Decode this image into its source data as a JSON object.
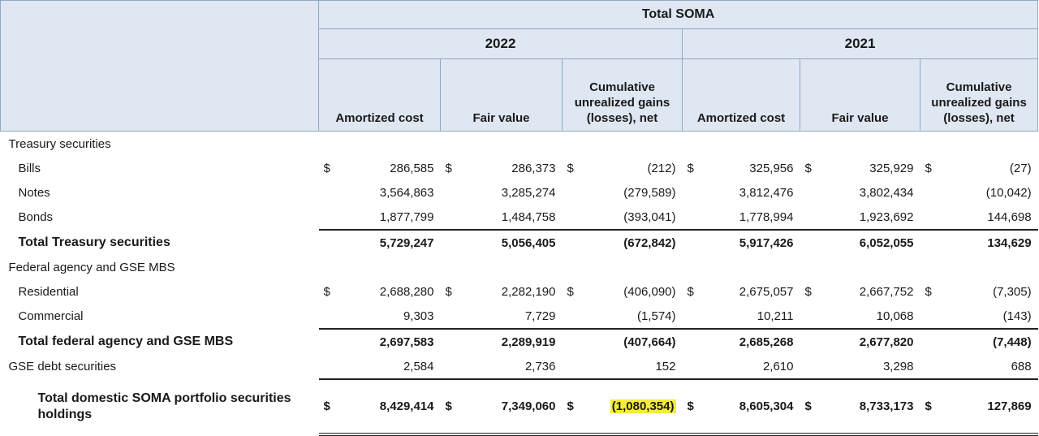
{
  "header": {
    "group": "Total SOMA",
    "years": [
      "2022",
      "2021"
    ],
    "columns": {
      "amortized": "Amortized cost",
      "fair": "Fair value",
      "cum_line1": "Cumulative",
      "cum_line2": "unrealized gains",
      "cum_line3": "(losses), net"
    }
  },
  "currency": "$",
  "rows": {
    "treasury_heading": "Treasury securities",
    "bills": {
      "label": "Bills",
      "v": [
        "286,585",
        "286,373",
        "(212)",
        "325,956",
        "325,929",
        "(27)"
      ]
    },
    "notes": {
      "label": "Notes",
      "v": [
        "3,564,863",
        "3,285,274",
        "(279,589)",
        "3,812,476",
        "3,802,434",
        "(10,042)"
      ]
    },
    "bonds": {
      "label": "Bonds",
      "v": [
        "1,877,799",
        "1,484,758",
        "(393,041)",
        "1,778,994",
        "1,923,692",
        "144,698"
      ]
    },
    "total_treasury": {
      "label": "Total Treasury securities",
      "v": [
        "5,729,247",
        "5,056,405",
        "(672,842)",
        "5,917,426",
        "6,052,055",
        "134,629"
      ]
    },
    "agency_heading": "Federal agency and GSE MBS",
    "residential": {
      "label": "Residential",
      "v": [
        "2,688,280",
        "2,282,190",
        "(406,090)",
        "2,675,057",
        "2,667,752",
        "(7,305)"
      ]
    },
    "commercial": {
      "label": "Commercial",
      "v": [
        "9,303",
        "7,729",
        "(1,574)",
        "10,211",
        "10,068",
        "(143)"
      ]
    },
    "total_agency": {
      "label": "Total federal agency and GSE MBS",
      "v": [
        "2,697,583",
        "2,289,919",
        "(407,664)",
        "2,685,268",
        "2,677,820",
        "(7,448)"
      ]
    },
    "gse_debt": {
      "label": "GSE debt securities",
      "v": [
        "2,584",
        "2,736",
        "152",
        "2,610",
        "3,298",
        "688"
      ]
    },
    "grand_total": {
      "label_line1": "Total domestic SOMA portfolio securities",
      "label_line2": "holdings",
      "v": [
        "8,429,414",
        "7,349,060",
        "(1,080,354)",
        "8,605,304",
        "8,733,173",
        "127,869"
      ]
    }
  },
  "colors": {
    "header_fill": "#dfe7f2",
    "highlight": "#f5ec3c"
  }
}
